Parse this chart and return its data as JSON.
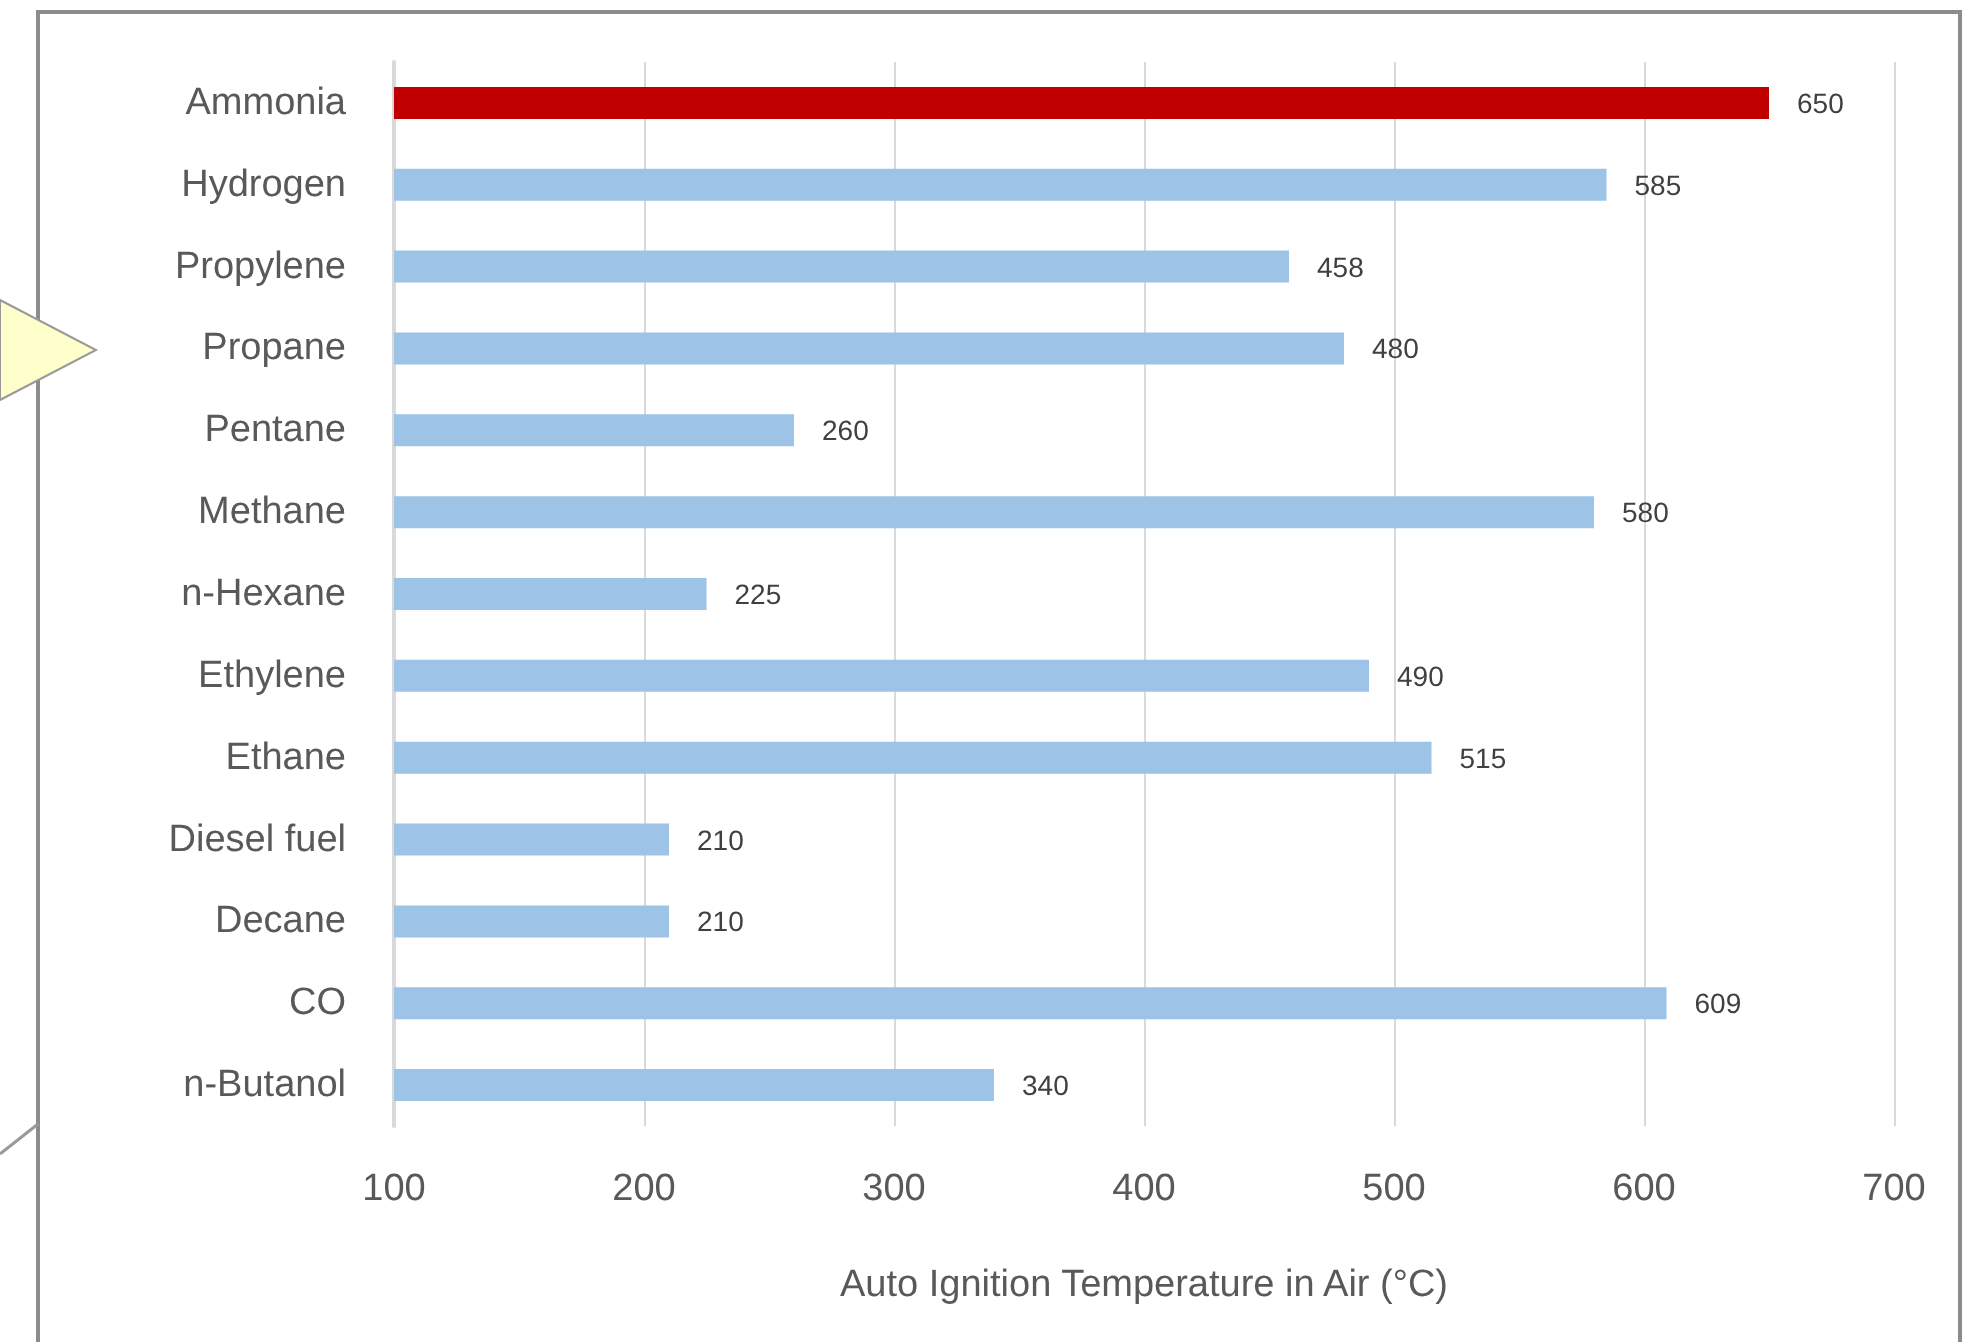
{
  "chart_data": {
    "type": "bar",
    "orientation": "horizontal",
    "xlabel": "Auto Ignition Temperature in Air (°C)",
    "categories": [
      "Ammonia",
      "Hydrogen",
      "Propylene",
      "Propane",
      "Pentane",
      "Methane",
      "n-Hexane",
      "Ethylene",
      "Ethane",
      "Diesel fuel",
      "Decane",
      "CO",
      "n-Butanol"
    ],
    "values": [
      650,
      585,
      458,
      480,
      260,
      580,
      225,
      490,
      515,
      210,
      210,
      609,
      340
    ],
    "colors": [
      "#c00000",
      "#9dc3e6",
      "#9dc3e6",
      "#9dc3e6",
      "#9dc3e6",
      "#9dc3e6",
      "#9dc3e6",
      "#9dc3e6",
      "#9dc3e6",
      "#9dc3e6",
      "#9dc3e6",
      "#9dc3e6",
      "#9dc3e6"
    ],
    "xlim": [
      100,
      700
    ],
    "xticks": [
      100,
      200,
      300,
      400,
      500,
      600,
      700
    ],
    "grid": "x",
    "data_labels": true
  }
}
